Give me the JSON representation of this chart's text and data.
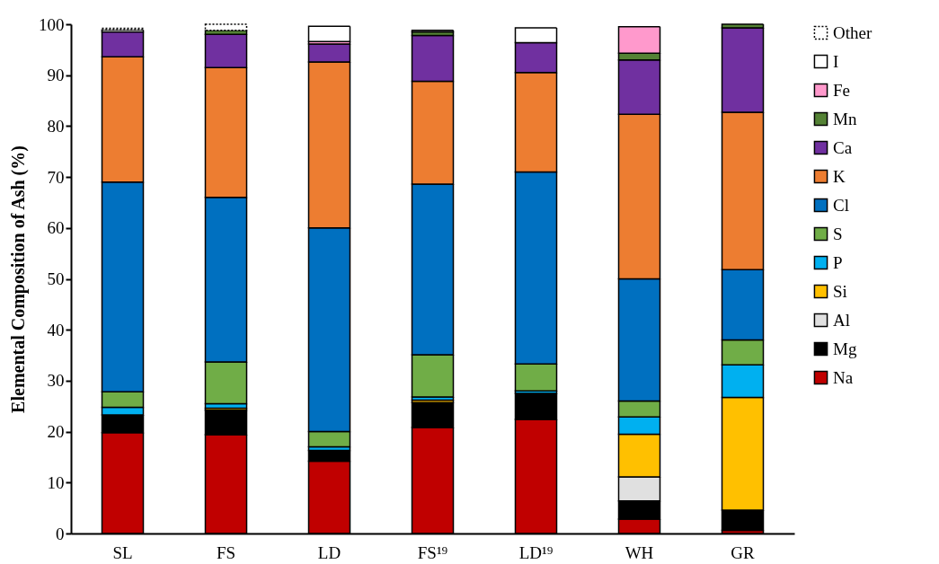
{
  "chart_data": {
    "type": "bar",
    "stacked": true,
    "ylabel": "Elemental Composition of Ash (%)",
    "categories": [
      "SL",
      "FS",
      "LD",
      "FS¹⁹",
      "LD¹⁹",
      "WH",
      "GR"
    ],
    "ylim": [
      0,
      100
    ],
    "yticks": [
      0,
      10,
      20,
      30,
      40,
      50,
      60,
      70,
      80,
      90,
      100
    ],
    "grid": false,
    "legend": "right",
    "series": [
      {
        "name": "Na",
        "color": "#c00000",
        "values": [
          19.8,
          19.4,
          14.2,
          20.8,
          22.4,
          2.8,
          0.6
        ]
      },
      {
        "name": "Mg",
        "color": "#000000",
        "values": [
          3.5,
          4.8,
          2.1,
          4.9,
          5.1,
          3.6,
          4.0
        ]
      },
      {
        "name": "Al",
        "color": "#e0e0e0",
        "values": [
          0,
          0,
          0,
          0,
          0,
          4.7,
          0
        ]
      },
      {
        "name": "Si",
        "color": "#ffc000",
        "values": [
          0,
          0.4,
          0,
          0.5,
          0,
          8.4,
          22.1
        ]
      },
      {
        "name": "P",
        "color": "#00b0f0",
        "values": [
          1.5,
          0.9,
          0.7,
          0.6,
          0.5,
          3.4,
          6.4
        ]
      },
      {
        "name": "S",
        "color": "#70ad47",
        "values": [
          3.0,
          8.2,
          3.0,
          8.3,
          5.3,
          3.1,
          4.9
        ]
      },
      {
        "name": "Cl",
        "color": "#0070c0",
        "values": [
          41.2,
          32.3,
          40.0,
          33.5,
          37.7,
          24.0,
          13.8
        ]
      },
      {
        "name": "K",
        "color": "#ed7d31",
        "values": [
          24.6,
          25.5,
          32.6,
          20.2,
          19.5,
          32.3,
          30.9
        ]
      },
      {
        "name": "Ca",
        "color": "#7030a0",
        "values": [
          4.9,
          6.5,
          3.5,
          9.0,
          5.9,
          10.7,
          16.6
        ]
      },
      {
        "name": "Mn",
        "color": "#548235",
        "values": [
          null,
          0.8,
          0,
          0.7,
          0,
          1.3,
          0.7
        ]
      },
      {
        "name": "Fe",
        "color": "#ff99cc",
        "values": [
          0,
          0,
          0.5,
          0,
          0,
          5.2,
          0
        ]
      },
      {
        "name": "I",
        "color": "#ffffff",
        "values": [
          0.4,
          0,
          3.0,
          0.3,
          2.9,
          0,
          0
        ]
      },
      {
        "name": "Other",
        "color": "#ffffff",
        "line_style": "dotted",
        "values": [
          0.3,
          1.2,
          0,
          0,
          0,
          0,
          0
        ]
      }
    ]
  }
}
